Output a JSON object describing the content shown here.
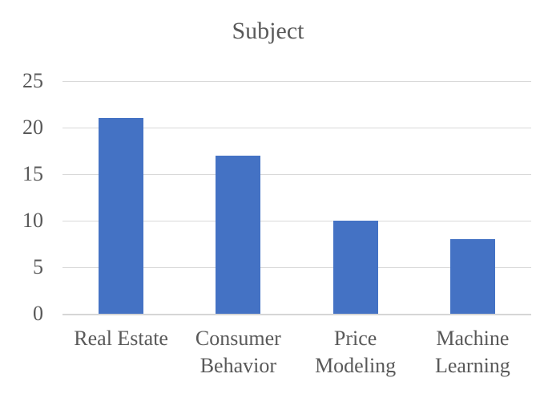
{
  "chart_data": {
    "type": "bar",
    "title": "Subject",
    "categories": [
      "Real Estate",
      "Consumer Behavior",
      "Price Modeling",
      "Machine Learning"
    ],
    "values": [
      21,
      17,
      10,
      8
    ],
    "yticks": [
      25,
      20,
      15,
      10,
      5,
      0
    ],
    "ylim": [
      0,
      25
    ],
    "xlabel": "",
    "ylabel": "",
    "grid": "horizontal",
    "legend": "none",
    "colors": {
      "bar": "#4472C4",
      "gridline": "#D9D9D9",
      "axis_line": "#D6D6D6",
      "text": "#595959",
      "background": "#FFFFFF"
    }
  }
}
